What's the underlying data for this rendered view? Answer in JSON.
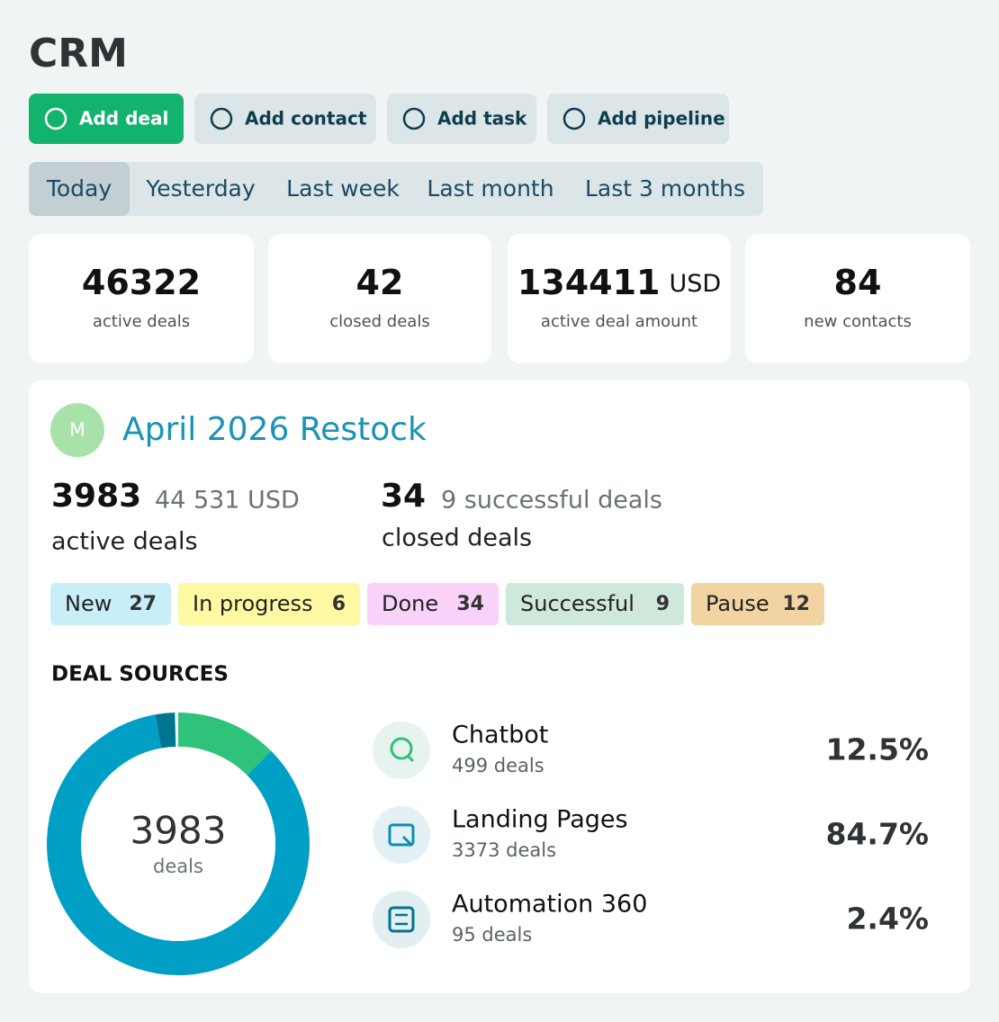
{
  "header": {
    "title": "CRM"
  },
  "actions": [
    "Add deal",
    "Add contact",
    "Add task",
    "Add pipeline"
  ],
  "periods": {
    "options": [
      "Today",
      "Yesterday",
      "Last week",
      "Last month",
      "Last 3 months"
    ],
    "selected": 0
  },
  "stats": [
    {
      "value": 46322,
      "label": "active deals"
    },
    {
      "value": 42,
      "label": "closed deals"
    },
    {
      "value": 134411,
      "unit": "USD",
      "label": "active deal amount"
    },
    {
      "value": 84,
      "label": "new contacts"
    }
  ],
  "pipeline": {
    "avatar": "M",
    "title": "April 2026 Restock",
    "active": {
      "count": 3983,
      "amount": "44 531 USD",
      "label": "active deals"
    },
    "closed": {
      "count": 34,
      "detail": "9 successful deals",
      "label": "closed deals"
    },
    "stages": [
      {
        "name": "New",
        "count": 27,
        "color": "#c8eef8"
      },
      {
        "name": "In progress",
        "count": 6,
        "color": "#fdf9a3"
      },
      {
        "name": "Done",
        "count": 34,
        "color": "#f9d2f9"
      },
      {
        "name": "Successful",
        "count": 9,
        "color": "#cfe8dc"
      },
      {
        "name": "Pause",
        "count": 12,
        "color": "#f2d3a2"
      }
    ]
  },
  "chart_data": {
    "type": "donut",
    "title": "DEAL SOURCES",
    "center_value": 3983,
    "center_label": "deals",
    "categories": [
      "Chatbot",
      "Landing Pages",
      "Automation 360"
    ],
    "details": [
      "499 deals",
      "3373 deals",
      "95 deals"
    ],
    "values": [
      12.5,
      84.7,
      2.4
    ],
    "value_labels": [
      "12.5%",
      "84.7%",
      "2.4%"
    ],
    "colors": [
      "#2fc27a",
      "#00a0c6",
      "#00758f"
    ]
  }
}
